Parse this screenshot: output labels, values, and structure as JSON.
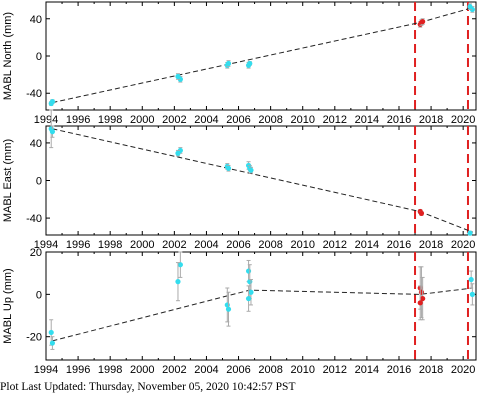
{
  "chart_data": [
    {
      "type": "scatter",
      "ylabel": "MABL North (mm)",
      "xlim": [
        1994,
        2020.8
      ],
      "ylim": [
        -58,
        58
      ],
      "yticks": [
        -40,
        0,
        40
      ],
      "xticks": [
        1994,
        1996,
        1998,
        2000,
        2002,
        2004,
        2006,
        2008,
        2010,
        2012,
        2014,
        2016,
        2018,
        2020
      ],
      "grid": false,
      "vlines": [
        2017.0,
        2020.3
      ],
      "trend": [
        [
          1994.4,
          -50
        ],
        [
          2017.3,
          36
        ],
        [
          2020.6,
          52
        ]
      ],
      "series": [
        {
          "color": "#33ddee",
          "points": [
            {
              "x": 1994.4,
              "y": -51,
              "err": 2
            },
            {
              "x": 1994.4,
              "y": -49,
              "err": 2
            },
            {
              "x": 2002.3,
              "y": -25,
              "err": 3
            },
            {
              "x": 2002.3,
              "y": -22,
              "err": 3
            },
            {
              "x": 2005.3,
              "y": -10,
              "err": 3
            },
            {
              "x": 2005.3,
              "y": -8,
              "err": 3
            },
            {
              "x": 2006.7,
              "y": -10,
              "err": 3
            },
            {
              "x": 2006.7,
              "y": -8,
              "err": 2
            },
            {
              "x": 2020.5,
              "y": 50,
              "err": 3
            },
            {
              "x": 2020.5,
              "y": 53,
              "err": 3
            }
          ]
        },
        {
          "color": "#e02020",
          "points": [
            {
              "x": 2017.4,
              "y": 34,
              "err": 3
            },
            {
              "x": 2017.4,
              "y": 36,
              "err": 3
            },
            {
              "x": 2017.4,
              "y": 37,
              "err": 3
            }
          ]
        }
      ]
    },
    {
      "type": "scatter",
      "ylabel": "MABL East (mm)",
      "xlim": [
        1994,
        2020.8
      ],
      "ylim": [
        -58,
        58
      ],
      "yticks": [
        -40,
        0,
        40
      ],
      "xticks": [
        1994,
        1996,
        1998,
        2000,
        2002,
        2004,
        2006,
        2008,
        2010,
        2012,
        2014,
        2016,
        2018,
        2020
      ],
      "grid": false,
      "vlines": [
        2017.0,
        2020.3
      ],
      "trend": [
        [
          1994.4,
          55
        ],
        [
          2017.3,
          -33
        ],
        [
          2020.6,
          -55
        ]
      ],
      "series": [
        {
          "color": "#33ddee",
          "points": [
            {
              "x": 1994.4,
              "y": 55,
              "err": 20
            },
            {
              "x": 1994.4,
              "y": 52,
              "err": 6
            },
            {
              "x": 2002.3,
              "y": 32,
              "err": 3
            },
            {
              "x": 2002.3,
              "y": 29,
              "err": 3
            },
            {
              "x": 2005.3,
              "y": 15,
              "err": 3
            },
            {
              "x": 2005.3,
              "y": 13,
              "err": 3
            },
            {
              "x": 2006.7,
              "y": 16,
              "err": 4
            },
            {
              "x": 2006.7,
              "y": 13,
              "err": 3
            },
            {
              "x": 2006.7,
              "y": 11,
              "err": 3
            },
            {
              "x": 2020.5,
              "y": -56,
              "err": 2
            }
          ]
        },
        {
          "color": "#e02020",
          "points": [
            {
              "x": 2017.4,
              "y": -33,
              "err": 2
            },
            {
              "x": 2017.4,
              "y": -35,
              "err": 2
            }
          ]
        }
      ]
    },
    {
      "type": "scatter",
      "ylabel": "MABL Up (mm)",
      "xlim": [
        1994,
        2020.8
      ],
      "ylim": [
        -31,
        20
      ],
      "yticks": [
        -20,
        0,
        20
      ],
      "xticks": [
        1994,
        1996,
        1998,
        2000,
        2002,
        2004,
        2006,
        2008,
        2010,
        2012,
        2014,
        2016,
        2018,
        2020
      ],
      "grid": false,
      "vlines": [
        2017.0,
        2020.3
      ],
      "trend": [
        [
          1994.4,
          -22
        ],
        [
          2006.7,
          2
        ],
        [
          2017.3,
          0
        ],
        [
          2020.6,
          3
        ]
      ],
      "series": [
        {
          "color": "#33ddee",
          "points": [
            {
              "x": 1994.4,
              "y": -18,
              "err": 6
            },
            {
              "x": 1994.4,
              "y": -23,
              "err": 3
            },
            {
              "x": 2002.3,
              "y": 14,
              "err": 6
            },
            {
              "x": 2002.3,
              "y": 6,
              "err": 9
            },
            {
              "x": 2005.3,
              "y": -5,
              "err": 8
            },
            {
              "x": 2005.3,
              "y": -7,
              "err": 8
            },
            {
              "x": 2006.7,
              "y": 11,
              "err": 5
            },
            {
              "x": 2006.7,
              "y": 6,
              "err": 8
            },
            {
              "x": 2006.7,
              "y": 1,
              "err": 6
            },
            {
              "x": 2006.7,
              "y": -2,
              "err": 6
            },
            {
              "x": 2020.5,
              "y": 7,
              "err": 4
            },
            {
              "x": 2020.5,
              "y": 0,
              "err": 5
            }
          ]
        },
        {
          "color": "#e02020",
          "points": [
            {
              "x": 2017.4,
              "y": 3,
              "err": 10
            },
            {
              "x": 2017.4,
              "y": 1,
              "err": 12
            },
            {
              "x": 2017.4,
              "y": -2,
              "err": 10
            },
            {
              "x": 2017.4,
              "y": -4,
              "err": 8
            }
          ]
        }
      ]
    }
  ],
  "footer": {
    "label": "Plot Last Updated:",
    "timestamp": "Thursday, November 05, 2020 10:42:57 PST"
  },
  "colors": {
    "dashed_vline": "#e02020",
    "trend": "#222222",
    "error_bar": "#aaaaaa",
    "axis": "#000000"
  }
}
